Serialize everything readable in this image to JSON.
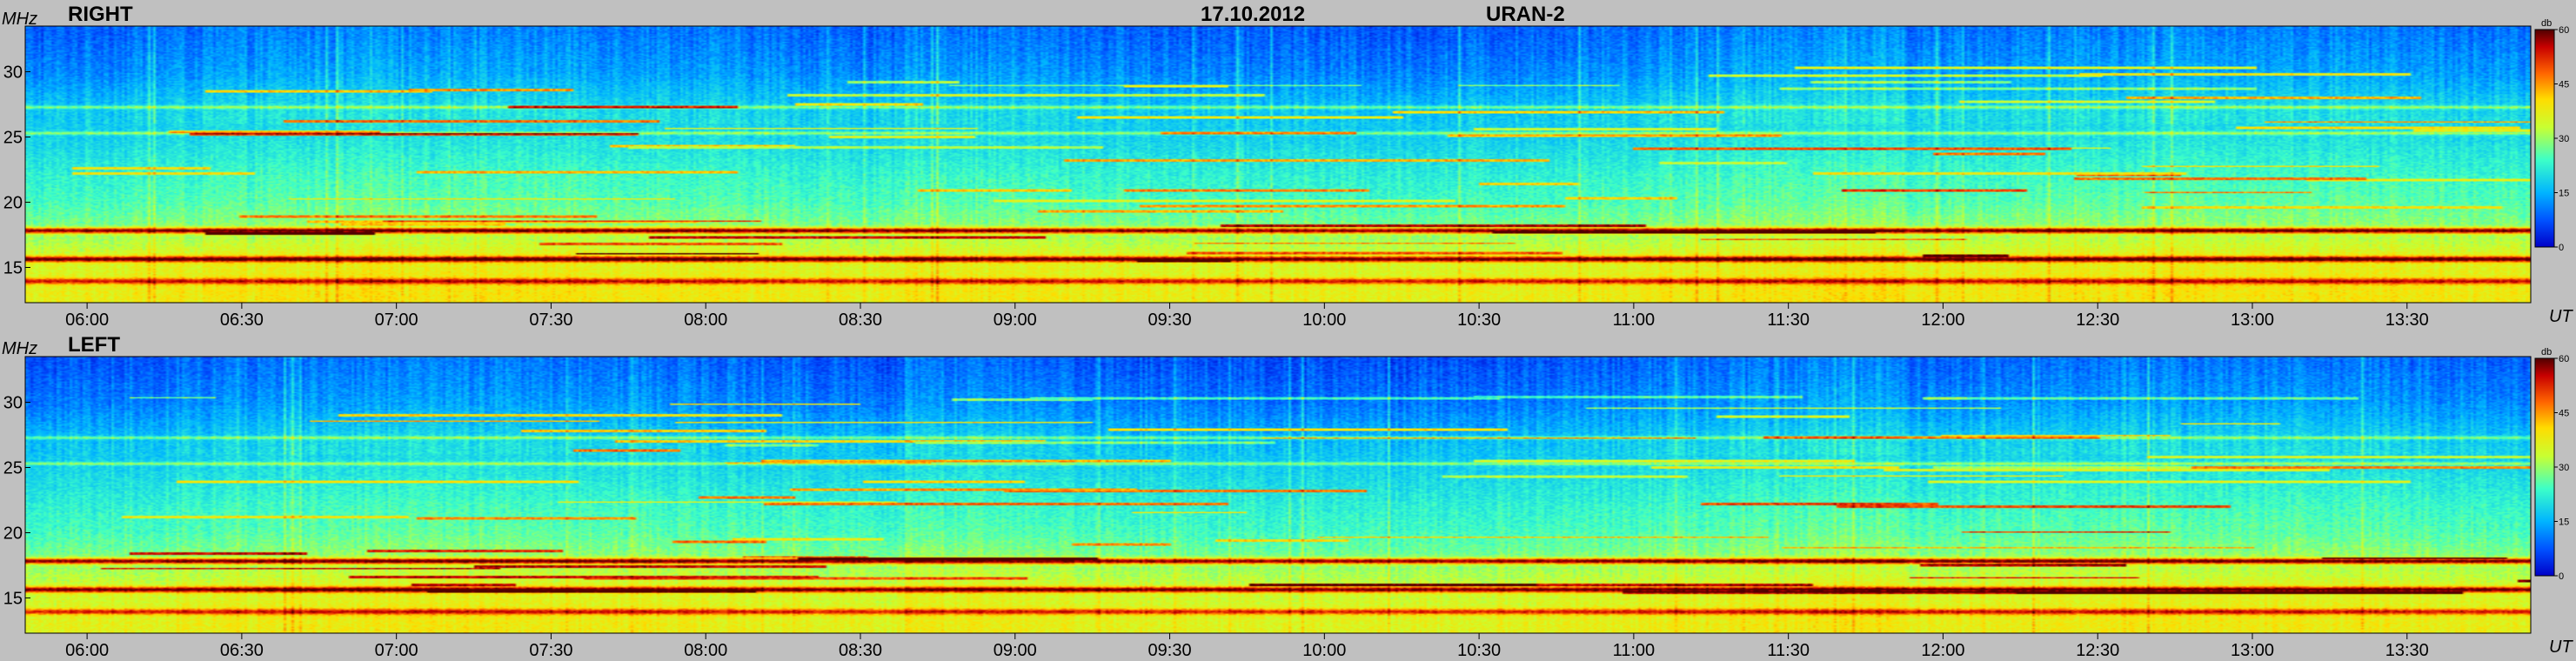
{
  "header": {
    "date": "17.10.2012",
    "instrument": "URAN-2"
  },
  "colors": {
    "background": "#c0c0c0",
    "colormap": [
      "#0000c8",
      "#0050ff",
      "#00b4ff",
      "#3cffc8",
      "#c8ff32",
      "#ffdc00",
      "#ff6400",
      "#c80000",
      "#500000"
    ]
  },
  "chart_data": [
    {
      "type": "heatmap",
      "panel_label": "RIGHT",
      "ylabel": "MHz",
      "xlabel": "UT",
      "ylim": [
        12.3,
        33.5
      ],
      "xlim": [
        "05:48",
        "13:54"
      ],
      "yticks": [
        "30",
        "25",
        "20",
        "15"
      ],
      "xticks": [
        "06:00",
        "06:30",
        "07:00",
        "07:30",
        "08:00",
        "08:30",
        "09:00",
        "09:30",
        "10:00",
        "10:30",
        "11:00",
        "11:30",
        "12:00",
        "12:30",
        "13:00",
        "13:30"
      ],
      "colorbar": {
        "label": "db",
        "ticks": [
          "60",
          "45",
          "30",
          "15",
          "0"
        ],
        "range": [
          0,
          60
        ]
      },
      "description_values": {
        "background_level_by_freq_db": [
          {
            "freq": 33,
            "db": 8
          },
          {
            "freq": 30,
            "db": 11
          },
          {
            "freq": 27,
            "db": 17
          },
          {
            "freq": 25,
            "db": 18
          },
          {
            "freq": 22,
            "db": 22
          },
          {
            "freq": 20,
            "db": 24
          },
          {
            "freq": 18,
            "db": 28
          },
          {
            "freq": 16,
            "db": 34
          },
          {
            "freq": 13,
            "db": 37
          }
        ],
        "interference_lines_mhz": [
          17.8,
          15.6,
          13.9,
          27.3,
          25.3
        ]
      }
    },
    {
      "type": "heatmap",
      "panel_label": "LEFT",
      "ylabel": "MHz",
      "xlabel": "UT",
      "ylim": [
        12.3,
        33.5
      ],
      "xlim": [
        "05:48",
        "13:54"
      ],
      "yticks": [
        "30",
        "25",
        "20",
        "15"
      ],
      "xticks": [
        "06:00",
        "06:30",
        "07:00",
        "07:30",
        "08:00",
        "08:30",
        "09:00",
        "09:30",
        "10:00",
        "10:30",
        "11:00",
        "11:30",
        "12:00",
        "12:30",
        "13:00",
        "13:30"
      ],
      "colorbar": {
        "label": "db",
        "ticks": [
          "60",
          "45",
          "30",
          "15",
          "0"
        ],
        "range": [
          0,
          60
        ]
      },
      "description_values": {
        "background_level_by_freq_db": [
          {
            "freq": 33,
            "db": 7
          },
          {
            "freq": 30,
            "db": 10
          },
          {
            "freq": 27,
            "db": 16
          },
          {
            "freq": 25,
            "db": 18
          },
          {
            "freq": 22,
            "db": 22
          },
          {
            "freq": 20,
            "db": 24
          },
          {
            "freq": 18,
            "db": 28
          },
          {
            "freq": 16,
            "db": 33
          },
          {
            "freq": 13,
            "db": 36
          }
        ],
        "interference_lines_mhz": [
          17.8,
          15.6,
          13.9,
          27.3,
          25.3
        ]
      }
    }
  ]
}
